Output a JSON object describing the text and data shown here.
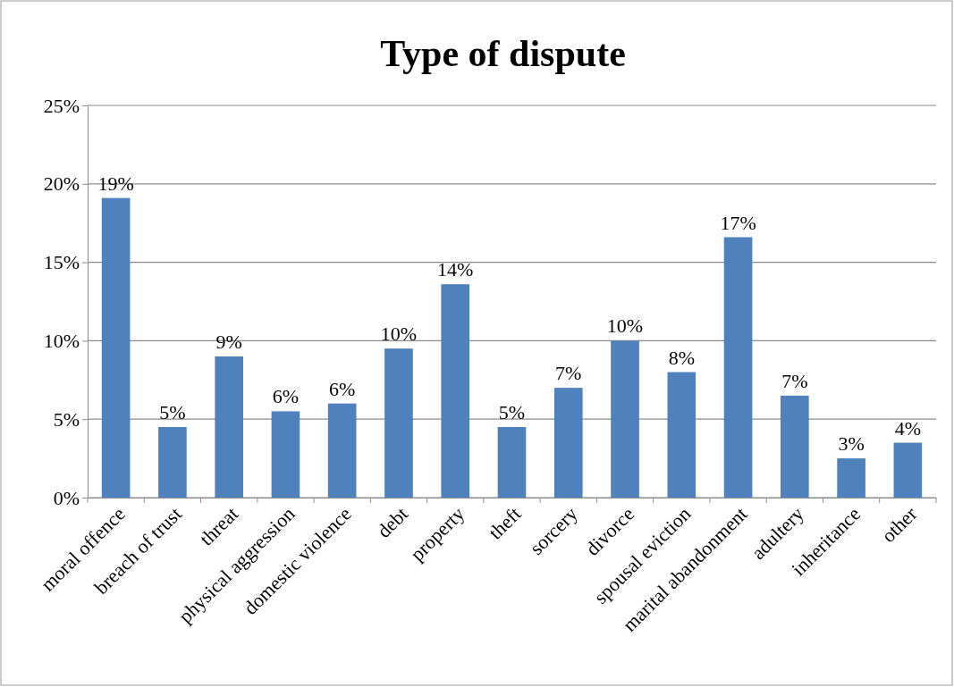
{
  "chart_data": {
    "type": "bar",
    "title": "Type of dispute",
    "categories": [
      "moral offence",
      "breach of trust",
      "threat",
      "physical aggression",
      "domestic violence",
      "debt",
      "property",
      "theft",
      "sorcery",
      "divorce",
      "spousal eviction",
      "marital abandonment",
      "adultery",
      "inheritance",
      "other"
    ],
    "values": [
      19.1,
      4.5,
      9.0,
      5.5,
      6.0,
      9.5,
      13.6,
      4.5,
      7.0,
      10.0,
      8.0,
      16.6,
      6.5,
      2.5,
      3.5
    ],
    "value_labels": [
      "19%",
      "5%",
      "9%",
      "6%",
      "6%",
      "10%",
      "14%",
      "5%",
      "7%",
      "10%",
      "8%",
      "17%",
      "7%",
      "3%",
      "4%"
    ],
    "color": "#4f81bd",
    "ylim": [
      0,
      25
    ],
    "yticks": [
      {
        "value": 0,
        "label": "0%"
      },
      {
        "value": 5,
        "label": "5%"
      },
      {
        "value": 10,
        "label": "10%"
      },
      {
        "value": 15,
        "label": "15%"
      },
      {
        "value": 20,
        "label": "20%"
      },
      {
        "value": 25,
        "label": "25%"
      }
    ],
    "grid": "y"
  }
}
